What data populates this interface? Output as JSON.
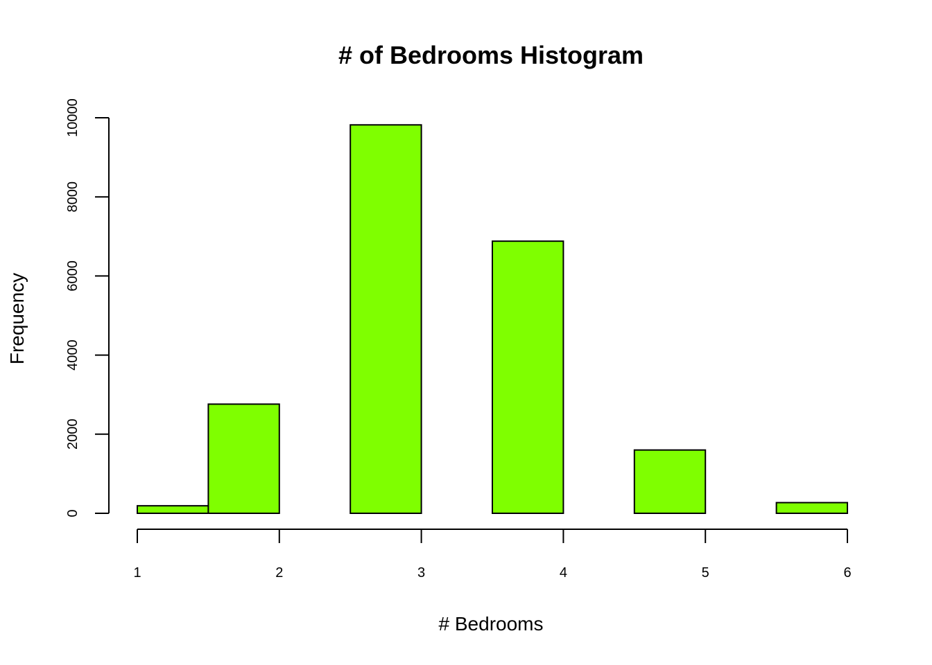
{
  "chart_data": {
    "type": "bar",
    "title": "# of Bedrooms Histogram",
    "xlabel": "# Bedrooms",
    "ylabel": "Frequency",
    "bin_width": 0.5,
    "bins": [
      {
        "x0": 1.0,
        "x1": 1.5,
        "count": 190
      },
      {
        "x0": 1.5,
        "x1": 2.0,
        "count": 2760
      },
      {
        "x0": 2.0,
        "x1": 2.5,
        "count": 0
      },
      {
        "x0": 2.5,
        "x1": 3.0,
        "count": 9820
      },
      {
        "x0": 3.0,
        "x1": 3.5,
        "count": 0
      },
      {
        "x0": 3.5,
        "x1": 4.0,
        "count": 6880
      },
      {
        "x0": 4.0,
        "x1": 4.5,
        "count": 0
      },
      {
        "x0": 4.5,
        "x1": 5.0,
        "count": 1600
      },
      {
        "x0": 5.0,
        "x1": 5.5,
        "count": 0
      },
      {
        "x0": 5.5,
        "x1": 6.0,
        "count": 270
      }
    ],
    "xlim": [
      1,
      6
    ],
    "ylim": [
      0,
      10000
    ],
    "x_ticks": [
      "1",
      "2",
      "3",
      "4",
      "5",
      "6"
    ],
    "y_ticks": [
      "0",
      "2000",
      "4000",
      "6000",
      "8000",
      "10000"
    ],
    "bar_color": "#7FFF00",
    "grid": false,
    "legend": "none"
  }
}
